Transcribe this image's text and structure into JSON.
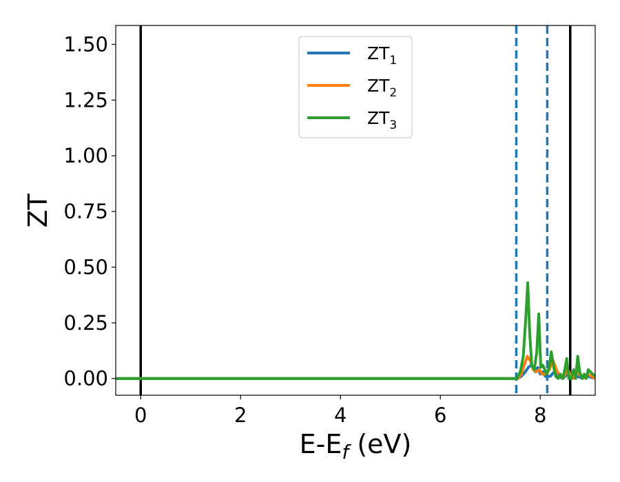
{
  "chart_data": {
    "type": "line",
    "title": "",
    "xlabel": {
      "main": "E-E",
      "sub": "f",
      "unit": " (eV)"
    },
    "ylabel": "ZT",
    "xlim": [
      -0.5,
      9.1
    ],
    "ylim": [
      -0.075,
      1.585
    ],
    "xticks": [
      {
        "value": 0,
        "label": "0"
      },
      {
        "value": 2,
        "label": "2"
      },
      {
        "value": 4,
        "label": "4"
      },
      {
        "value": 6,
        "label": "6"
      },
      {
        "value": 8,
        "label": "8"
      }
    ],
    "yticks": [
      {
        "value": 0.0,
        "label": "0.00"
      },
      {
        "value": 0.25,
        "label": "0.25"
      },
      {
        "value": 0.5,
        "label": "0.50"
      },
      {
        "value": 0.75,
        "label": "0.75"
      },
      {
        "value": 1.0,
        "label": "1.00"
      },
      {
        "value": 1.25,
        "label": "1.25"
      },
      {
        "value": 1.5,
        "label": "1.50"
      }
    ],
    "legend": {
      "placement": "top-center"
    },
    "vlines": [
      {
        "x": 0.0,
        "style": "solid",
        "color": "#000000"
      },
      {
        "x": 8.6,
        "style": "solid",
        "color": "#000000"
      },
      {
        "x": 7.52,
        "style": "dashed",
        "color": "#1f77b4"
      },
      {
        "x": 8.14,
        "style": "dashed",
        "color": "#1f77b4"
      }
    ],
    "series": [
      {
        "name": "ZT",
        "sub": "1",
        "color": "#1f77b4",
        "x": [
          -0.5,
          7.55,
          7.62,
          7.7,
          7.76,
          7.82,
          7.86,
          7.9,
          7.95,
          8.0,
          8.05,
          8.1,
          8.2,
          8.28,
          8.35,
          8.45,
          8.55,
          8.65,
          8.75,
          8.85,
          8.95,
          9.1
        ],
        "y": [
          0,
          0,
          0.01,
          0.03,
          0.05,
          0.06,
          0.05,
          0.03,
          0.05,
          0.02,
          0.03,
          0.01,
          0.01,
          0.03,
          0.01,
          0.0,
          0.02,
          0.0,
          0.01,
          0.0,
          0.01,
          0.0
        ]
      },
      {
        "name": "ZT",
        "sub": "2",
        "color": "#ff7f0e",
        "x": [
          -0.5,
          7.55,
          7.62,
          7.68,
          7.74,
          7.8,
          7.86,
          7.92,
          7.98,
          8.04,
          8.1,
          8.18,
          8.26,
          8.34,
          8.45,
          8.55,
          8.65,
          8.75,
          8.85,
          8.95,
          9.1
        ],
        "y": [
          0,
          0,
          0.02,
          0.06,
          0.1,
          0.08,
          0.04,
          0.03,
          0.04,
          0.02,
          0.02,
          0.04,
          0.08,
          0.03,
          0.0,
          0.04,
          0.0,
          0.03,
          0.0,
          0.02,
          0.0
        ]
      },
      {
        "name": "ZT",
        "sub": "3",
        "color": "#2ca02c",
        "x": [
          -0.5,
          7.53,
          7.6,
          7.66,
          7.71,
          7.75,
          7.79,
          7.83,
          7.88,
          7.93,
          7.97,
          8.01,
          8.05,
          8.09,
          8.13,
          8.18,
          8.22,
          8.27,
          8.31,
          8.36,
          8.4,
          8.45,
          8.49,
          8.53,
          8.57,
          8.62,
          8.67,
          8.71,
          8.75,
          8.79,
          8.84,
          8.88,
          8.92,
          8.96,
          9.0,
          9.05,
          9.1
        ],
        "y": [
          0,
          0,
          0.03,
          0.1,
          0.27,
          0.43,
          0.2,
          0.06,
          0.04,
          0.12,
          0.29,
          0.05,
          0.06,
          0.04,
          0.02,
          0.05,
          0.12,
          0.05,
          0.01,
          0.0,
          0.02,
          0.0,
          0.04,
          0.09,
          0.0,
          0.0,
          0.04,
          0.0,
          0.1,
          0.03,
          0.0,
          0.02,
          0.0,
          0.04,
          0.03,
          0.02,
          0.01
        ]
      }
    ]
  }
}
